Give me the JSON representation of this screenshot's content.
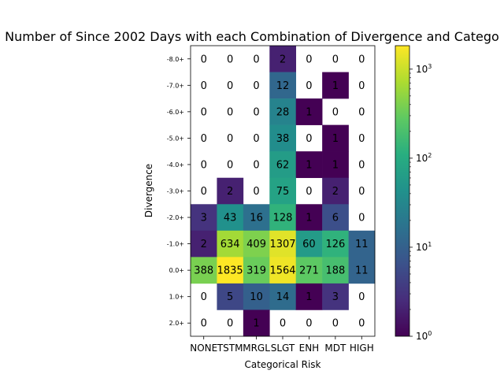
{
  "chart_data": {
    "type": "heatmap",
    "title": "Number of Since 2002 Days with each Combination of Divergence and Catego",
    "xlabel": "Categorical Risk",
    "ylabel": "Divergence",
    "x_categories": [
      "NONE",
      "TSTM",
      "MRGL",
      "SLGT",
      "ENH",
      "MDT",
      "HIGH"
    ],
    "y_categories": [
      "-8.0+",
      "-7.0+",
      "-6.0+",
      "-5.0+",
      "-4.0+",
      "-3.0+",
      "-2.0+",
      "-1.0+",
      "0.0+",
      "1.0+",
      "2.0+"
    ],
    "values": [
      [
        0,
        0,
        0,
        2,
        0,
        0,
        0
      ],
      [
        0,
        0,
        0,
        12,
        0,
        1,
        0
      ],
      [
        0,
        0,
        0,
        28,
        1,
        0,
        0
      ],
      [
        0,
        0,
        0,
        38,
        0,
        1,
        0
      ],
      [
        0,
        0,
        0,
        62,
        1,
        1,
        0
      ],
      [
        0,
        2,
        0,
        75,
        0,
        2,
        0
      ],
      [
        3,
        43,
        16,
        128,
        1,
        6,
        0
      ],
      [
        2,
        634,
        409,
        1307,
        60,
        126,
        11
      ],
      [
        388,
        1835,
        319,
        1564,
        271,
        188,
        11
      ],
      [
        0,
        5,
        10,
        14,
        1,
        3,
        0
      ],
      [
        0,
        0,
        1,
        0,
        0,
        0,
        0
      ]
    ],
    "zero_cells": "blank",
    "colormap": "viridis",
    "color_scale": "log",
    "colorbar": {
      "range": [
        1,
        1835
      ],
      "tick_labels": [
        "10^0",
        "10^1",
        "10^2",
        "10^3"
      ]
    }
  }
}
